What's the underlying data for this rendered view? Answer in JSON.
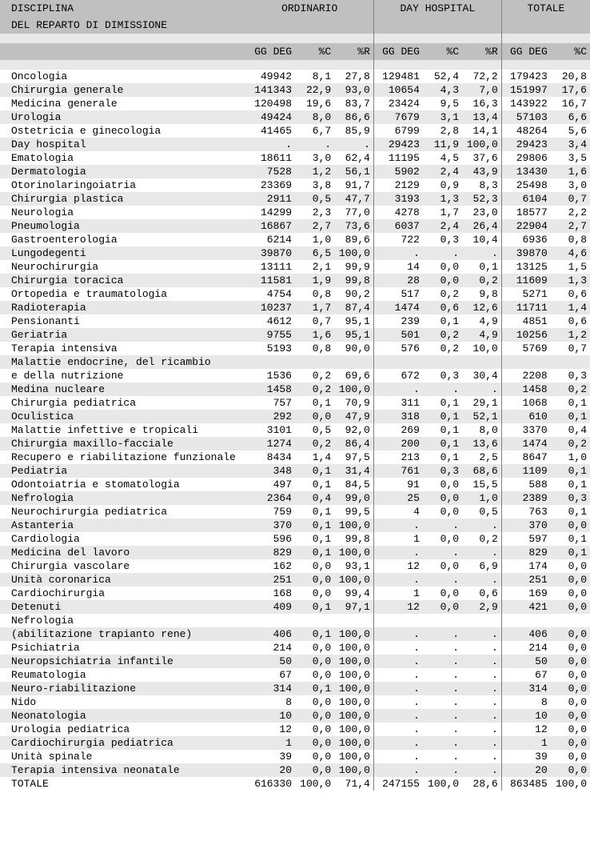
{
  "type": "table",
  "title_line1": "DISCIPLINA",
  "title_line2": "DEL REPARTO DI DIMISSIONE",
  "groups": [
    "ORDINARIO",
    "DAY HOSPITAL",
    "TOTALE"
  ],
  "cols": {
    "g1": [
      "GG DEG",
      "%C",
      "%R"
    ],
    "g2": [
      "GG DEG",
      "%C",
      "%R"
    ],
    "g3": [
      "GG DEG",
      "%C"
    ]
  },
  "col_widths": {
    "label": 300,
    "num_wide": 60,
    "num_narrow": 48
  },
  "colors": {
    "header_bg": "#c0c0c0",
    "row_alt_bg": "#e8e8e8",
    "row_bg": "#ffffff",
    "text": "#000000",
    "sep_left": "#808080",
    "sep_right": "#ffffff"
  },
  "fontsize": 13,
  "rows": [
    {
      "label": "Oncologia",
      "o": [
        "49942",
        "8,1",
        "27,8"
      ],
      "d": [
        "129481",
        "52,4",
        "72,2"
      ],
      "t": [
        "179423",
        "20,8"
      ]
    },
    {
      "label": "Chirurgia generale",
      "o": [
        "141343",
        "22,9",
        "93,0"
      ],
      "d": [
        "10654",
        "4,3",
        "7,0"
      ],
      "t": [
        "151997",
        "17,6"
      ]
    },
    {
      "label": "Medicina generale",
      "o": [
        "120498",
        "19,6",
        "83,7"
      ],
      "d": [
        "23424",
        "9,5",
        "16,3"
      ],
      "t": [
        "143922",
        "16,7"
      ]
    },
    {
      "label": "Urologia",
      "o": [
        "49424",
        "8,0",
        "86,6"
      ],
      "d": [
        "7679",
        "3,1",
        "13,4"
      ],
      "t": [
        "57103",
        "6,6"
      ]
    },
    {
      "label": "Ostetricia e ginecologia",
      "o": [
        "41465",
        "6,7",
        "85,9"
      ],
      "d": [
        "6799",
        "2,8",
        "14,1"
      ],
      "t": [
        "48264",
        "5,6"
      ]
    },
    {
      "label": "Day hospital",
      "o": [
        ".",
        ".",
        "."
      ],
      "d": [
        "29423",
        "11,9",
        "100,0"
      ],
      "t": [
        "29423",
        "3,4"
      ]
    },
    {
      "label": "Ematologia",
      "o": [
        "18611",
        "3,0",
        "62,4"
      ],
      "d": [
        "11195",
        "4,5",
        "37,6"
      ],
      "t": [
        "29806",
        "3,5"
      ]
    },
    {
      "label": "Dermatologia",
      "o": [
        "7528",
        "1,2",
        "56,1"
      ],
      "d": [
        "5902",
        "2,4",
        "43,9"
      ],
      "t": [
        "13430",
        "1,6"
      ]
    },
    {
      "label": "Otorinolaringoiatria",
      "o": [
        "23369",
        "3,8",
        "91,7"
      ],
      "d": [
        "2129",
        "0,9",
        "8,3"
      ],
      "t": [
        "25498",
        "3,0"
      ]
    },
    {
      "label": "Chirurgia plastica",
      "o": [
        "2911",
        "0,5",
        "47,7"
      ],
      "d": [
        "3193",
        "1,3",
        "52,3"
      ],
      "t": [
        "6104",
        "0,7"
      ]
    },
    {
      "label": "Neurologia",
      "o": [
        "14299",
        "2,3",
        "77,0"
      ],
      "d": [
        "4278",
        "1,7",
        "23,0"
      ],
      "t": [
        "18577",
        "2,2"
      ]
    },
    {
      "label": "Pneumologia",
      "o": [
        "16867",
        "2,7",
        "73,6"
      ],
      "d": [
        "6037",
        "2,4",
        "26,4"
      ],
      "t": [
        "22904",
        "2,7"
      ]
    },
    {
      "label": "Gastroenterologia",
      "o": [
        "6214",
        "1,0",
        "89,6"
      ],
      "d": [
        "722",
        "0,3",
        "10,4"
      ],
      "t": [
        "6936",
        "0,8"
      ]
    },
    {
      "label": "Lungodegenti",
      "o": [
        "39870",
        "6,5",
        "100,0"
      ],
      "d": [
        ".",
        ".",
        "."
      ],
      "t": [
        "39870",
        "4,6"
      ]
    },
    {
      "label": "Neurochirurgia",
      "o": [
        "13111",
        "2,1",
        "99,9"
      ],
      "d": [
        "14",
        "0,0",
        "0,1"
      ],
      "t": [
        "13125",
        "1,5"
      ]
    },
    {
      "label": "Chirurgia toracica",
      "o": [
        "11581",
        "1,9",
        "99,8"
      ],
      "d": [
        "28",
        "0,0",
        "0,2"
      ],
      "t": [
        "11609",
        "1,3"
      ]
    },
    {
      "label": "Ortopedia e traumatologia",
      "o": [
        "4754",
        "0,8",
        "90,2"
      ],
      "d": [
        "517",
        "0,2",
        "9,8"
      ],
      "t": [
        "5271",
        "0,6"
      ]
    },
    {
      "label": "Radioterapia",
      "o": [
        "10237",
        "1,7",
        "87,4"
      ],
      "d": [
        "1474",
        "0,6",
        "12,6"
      ],
      "t": [
        "11711",
        "1,4"
      ]
    },
    {
      "label": "Pensionanti",
      "o": [
        "4612",
        "0,7",
        "95,1"
      ],
      "d": [
        "239",
        "0,1",
        "4,9"
      ],
      "t": [
        "4851",
        "0,6"
      ]
    },
    {
      "label": "Geriatria",
      "o": [
        "9755",
        "1,6",
        "95,1"
      ],
      "d": [
        "501",
        "0,2",
        "4,9"
      ],
      "t": [
        "10256",
        "1,2"
      ]
    },
    {
      "label": "Terapia intensiva",
      "o": [
        "5193",
        "0,8",
        "90,0"
      ],
      "d": [
        "576",
        "0,2",
        "10,0"
      ],
      "t": [
        "5769",
        "0,7"
      ]
    },
    {
      "label": "Malattie endocrine, del ricambio\ne della nutrizione",
      "o": [
        "1536",
        "0,2",
        "69,6"
      ],
      "d": [
        "672",
        "0,3",
        "30,4"
      ],
      "t": [
        "2208",
        "0,3"
      ],
      "twoLine": true
    },
    {
      "label": "Medina nucleare",
      "o": [
        "1458",
        "0,2",
        "100,0"
      ],
      "d": [
        ".",
        ".",
        "."
      ],
      "t": [
        "1458",
        "0,2"
      ]
    },
    {
      "label": "Chirurgia pediatrica",
      "o": [
        "757",
        "0,1",
        "70,9"
      ],
      "d": [
        "311",
        "0,1",
        "29,1"
      ],
      "t": [
        "1068",
        "0,1"
      ]
    },
    {
      "label": "Oculistica",
      "o": [
        "292",
        "0,0",
        "47,9"
      ],
      "d": [
        "318",
        "0,1",
        "52,1"
      ],
      "t": [
        "610",
        "0,1"
      ]
    },
    {
      "label": "Malattie infettive e tropicali",
      "o": [
        "3101",
        "0,5",
        "92,0"
      ],
      "d": [
        "269",
        "0,1",
        "8,0"
      ],
      "t": [
        "3370",
        "0,4"
      ]
    },
    {
      "label": "Chirurgia maxillo-facciale",
      "o": [
        "1274",
        "0,2",
        "86,4"
      ],
      "d": [
        "200",
        "0,1",
        "13,6"
      ],
      "t": [
        "1474",
        "0,2"
      ]
    },
    {
      "label": "Recupero e riabilitazione funzionale",
      "o": [
        "8434",
        "1,4",
        "97,5"
      ],
      "d": [
        "213",
        "0,1",
        "2,5"
      ],
      "t": [
        "8647",
        "1,0"
      ]
    },
    {
      "label": "Pediatria",
      "o": [
        "348",
        "0,1",
        "31,4"
      ],
      "d": [
        "761",
        "0,3",
        "68,6"
      ],
      "t": [
        "1109",
        "0,1"
      ]
    },
    {
      "label": "Odontoiatria e stomatologia",
      "o": [
        "497",
        "0,1",
        "84,5"
      ],
      "d": [
        "91",
        "0,0",
        "15,5"
      ],
      "t": [
        "588",
        "0,1"
      ]
    },
    {
      "label": "Nefrologia",
      "o": [
        "2364",
        "0,4",
        "99,0"
      ],
      "d": [
        "25",
        "0,0",
        "1,0"
      ],
      "t": [
        "2389",
        "0,3"
      ]
    },
    {
      "label": "Neurochirurgia pediatrica",
      "o": [
        "759",
        "0,1",
        "99,5"
      ],
      "d": [
        "4",
        "0,0",
        "0,5"
      ],
      "t": [
        "763",
        "0,1"
      ]
    },
    {
      "label": "Astanteria",
      "o": [
        "370",
        "0,1",
        "100,0"
      ],
      "d": [
        ".",
        ".",
        "."
      ],
      "t": [
        "370",
        "0,0"
      ]
    },
    {
      "label": "Cardiologia",
      "o": [
        "596",
        "0,1",
        "99,8"
      ],
      "d": [
        "1",
        "0,0",
        "0,2"
      ],
      "t": [
        "597",
        "0,1"
      ]
    },
    {
      "label": "Medicina del lavoro",
      "o": [
        "829",
        "0,1",
        "100,0"
      ],
      "d": [
        ".",
        ".",
        "."
      ],
      "t": [
        "829",
        "0,1"
      ]
    },
    {
      "label": "Chirurgia vascolare",
      "o": [
        "162",
        "0,0",
        "93,1"
      ],
      "d": [
        "12",
        "0,0",
        "6,9"
      ],
      "t": [
        "174",
        "0,0"
      ]
    },
    {
      "label": "Unità coronarica",
      "o": [
        "251",
        "0,0",
        "100,0"
      ],
      "d": [
        ".",
        ".",
        "."
      ],
      "t": [
        "251",
        "0,0"
      ]
    },
    {
      "label": "Cardiochirurgia",
      "o": [
        "168",
        "0,0",
        "99,4"
      ],
      "d": [
        "1",
        "0,0",
        "0,6"
      ],
      "t": [
        "169",
        "0,0"
      ]
    },
    {
      "label": "Detenuti",
      "o": [
        "409",
        "0,1",
        "97,1"
      ],
      "d": [
        "12",
        "0,0",
        "2,9"
      ],
      "t": [
        "421",
        "0,0"
      ]
    },
    {
      "label": "Nefrologia\n(abilitazione trapianto rene)",
      "o": [
        "406",
        "0,1",
        "100,0"
      ],
      "d": [
        ".",
        ".",
        "."
      ],
      "t": [
        "406",
        "0,0"
      ],
      "twoLine": true
    },
    {
      "label": "Psichiatria",
      "o": [
        "214",
        "0,0",
        "100,0"
      ],
      "d": [
        ".",
        ".",
        "."
      ],
      "t": [
        "214",
        "0,0"
      ]
    },
    {
      "label": "Neuropsichiatria infantile",
      "o": [
        "50",
        "0,0",
        "100,0"
      ],
      "d": [
        ".",
        ".",
        "."
      ],
      "t": [
        "50",
        "0,0"
      ]
    },
    {
      "label": "Reumatologia",
      "o": [
        "67",
        "0,0",
        "100,0"
      ],
      "d": [
        ".",
        ".",
        "."
      ],
      "t": [
        "67",
        "0,0"
      ]
    },
    {
      "label": "Neuro-riabilitazione",
      "o": [
        "314",
        "0,1",
        "100,0"
      ],
      "d": [
        ".",
        ".",
        "."
      ],
      "t": [
        "314",
        "0,0"
      ]
    },
    {
      "label": "Nido",
      "o": [
        "8",
        "0,0",
        "100,0"
      ],
      "d": [
        ".",
        ".",
        "."
      ],
      "t": [
        "8",
        "0,0"
      ]
    },
    {
      "label": "Neonatologia",
      "o": [
        "10",
        "0,0",
        "100,0"
      ],
      "d": [
        ".",
        ".",
        "."
      ],
      "t": [
        "10",
        "0,0"
      ]
    },
    {
      "label": "Urologia pediatrica",
      "o": [
        "12",
        "0,0",
        "100,0"
      ],
      "d": [
        ".",
        ".",
        "."
      ],
      "t": [
        "12",
        "0,0"
      ]
    },
    {
      "label": "Cardiochirurgia pediatrica",
      "o": [
        "1",
        "0,0",
        "100,0"
      ],
      "d": [
        ".",
        ".",
        "."
      ],
      "t": [
        "1",
        "0,0"
      ]
    },
    {
      "label": "Unità spinale",
      "o": [
        "39",
        "0,0",
        "100,0"
      ],
      "d": [
        ".",
        ".",
        "."
      ],
      "t": [
        "39",
        "0,0"
      ]
    },
    {
      "label": "Terapia intensiva neonatale",
      "o": [
        "20",
        "0,0",
        "100,0"
      ],
      "d": [
        ".",
        ".",
        "."
      ],
      "t": [
        "20",
        "0,0"
      ]
    },
    {
      "label": "TOTALE",
      "o": [
        "616330",
        "100,0",
        "71,4"
      ],
      "d": [
        "247155",
        "100,0",
        "28,6"
      ],
      "t": [
        "863485",
        "100,0"
      ]
    }
  ]
}
